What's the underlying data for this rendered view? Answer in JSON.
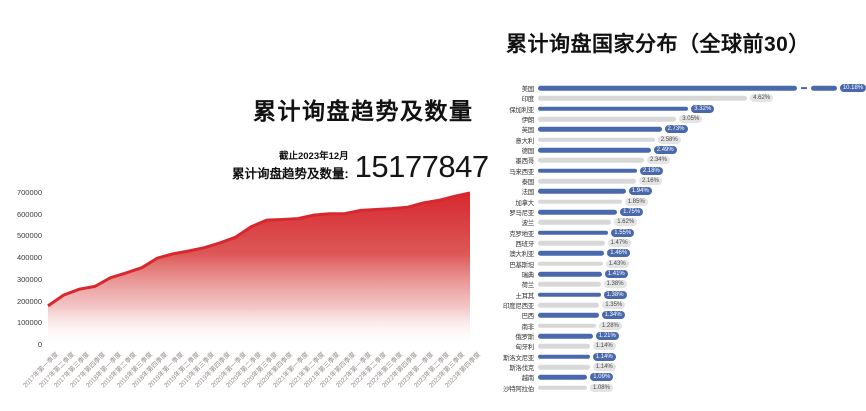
{
  "accent_colors": {
    "red": "#d7282f",
    "blue": "#4a69ad",
    "gray_bar": "#d8d8d8"
  },
  "chart_data": [
    {
      "id": "inquiry-trend",
      "type": "area",
      "title": "累计询盘趋势及数量",
      "annotation": {
        "as_of": "截止2023年12月",
        "label": "累计询盘趋势及数量:",
        "value": "15177847"
      },
      "xlabel": "",
      "ylabel": "",
      "ylim": [
        0,
        700000
      ],
      "yticks": [
        0,
        100000,
        200000,
        300000,
        400000,
        500000,
        600000,
        700000
      ],
      "grid": false,
      "legend": "none",
      "line_color": "#d7282f",
      "x": [
        "2017年第一季度",
        "2017年第二季度",
        "2017年第三季度",
        "2017年第四季度",
        "2018年第一季度",
        "2018年第二季度",
        "2018年第三季度",
        "2018年第四季度",
        "2019年第一季度",
        "2019年第二季度",
        "2019年第三季度",
        "2019年第四季度",
        "2020年第一季度",
        "2020年第二季度",
        "2020年第三季度",
        "2020年第四季度",
        "2021年第一季度",
        "2021年第二季度",
        "2021年第三季度",
        "2021年第四季度",
        "2022年第一季度",
        "2022年第二季度",
        "2022年第三季度",
        "2022年第四季度",
        "2023年第一季度",
        "2023年第二季度",
        "2023年第三季度",
        "2023年第四季度"
      ],
      "values": [
        180000,
        230000,
        257000,
        270000,
        310000,
        332000,
        356000,
        400000,
        420000,
        433000,
        448000,
        470000,
        497000,
        545000,
        575000,
        578000,
        582000,
        598000,
        604000,
        605000,
        620000,
        624000,
        628000,
        634000,
        654000,
        666000,
        685000,
        700000
      ]
    },
    {
      "id": "inquiry-countries",
      "type": "bar",
      "orientation": "horizontal",
      "title": "累计询盘国家分布（全球前30）",
      "legend": "none",
      "grid": false,
      "axis_break_index": 0,
      "bar_color_odd_rows": "#4a69ad",
      "bar_color_even_rows": "#d8d8d8",
      "categories": [
        "美国",
        "印度",
        "保加利亚",
        "伊朗",
        "英国",
        "意大利",
        "德国",
        "墨西哥",
        "马来西亚",
        "泰国",
        "法国",
        "加拿大",
        "罗马尼亚",
        "波兰",
        "克罗地亚",
        "西班牙",
        "澳大利亚",
        "巴基斯坦",
        "瑞典",
        "荷兰",
        "土耳其",
        "印度尼西亚",
        "巴西",
        "南非",
        "俄罗斯",
        "匈牙利",
        "斯洛文尼亚",
        "斯洛伐克",
        "越南",
        "沙特阿拉伯"
      ],
      "values": [
        10.18,
        4.62,
        3.32,
        3.05,
        2.73,
        2.58,
        2.49,
        2.34,
        2.18,
        2.16,
        1.94,
        1.85,
        1.75,
        1.62,
        1.55,
        1.47,
        1.46,
        1.43,
        1.41,
        1.38,
        1.38,
        1.35,
        1.34,
        1.28,
        1.21,
        1.14,
        1.14,
        1.14,
        1.09,
        1.08
      ],
      "labels": [
        "10.18%",
        "4.62%",
        "3.32%",
        "3.05%",
        "2.73%",
        "2.58%",
        "2.49%",
        "2.34%",
        "2.18%",
        "2.16%",
        "1.94%",
        "1.85%",
        "1.75%",
        "1.62%",
        "1.55%",
        "1.47%",
        "1.46%",
        "1.43%",
        "1.41%",
        "1.38%",
        "1.38%",
        "1.35%",
        "1.34%",
        "1.28%",
        "1.21%",
        "1.14%",
        "1.14%",
        "1.14%",
        "1.09%",
        "1.08%"
      ]
    }
  ]
}
